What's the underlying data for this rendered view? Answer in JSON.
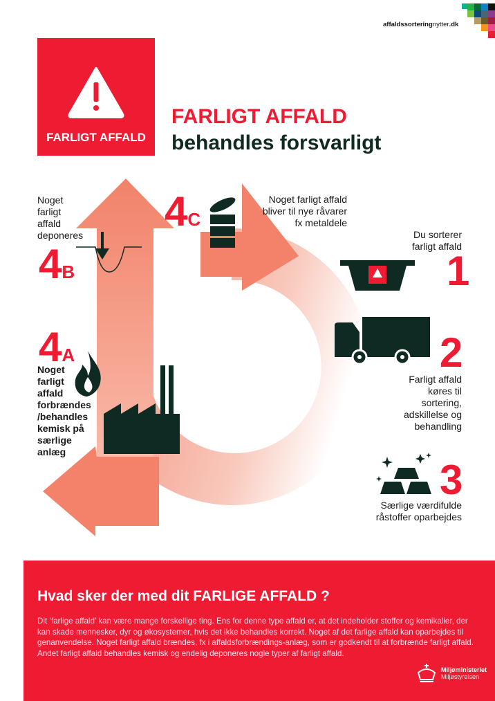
{
  "header": {
    "site_bold": "affaldssortering",
    "site_light": "nytter",
    "site_tld": ".dk",
    "mosaic_colors": [
      "#0bb38f",
      "#22b24c",
      "#0a6b3a",
      "#0a84c6",
      "#111111",
      "#7dc142",
      "#0a4a7a",
      "#4a6670",
      "#8e3a8c",
      "#b89a66",
      "#6b5a2a",
      "#a01e44",
      "#f7941d",
      "#ef4b8b",
      "#ee1c33"
    ]
  },
  "badge": {
    "label": "FARLIGT AFFALD",
    "icon": "warning-triangle-icon"
  },
  "title": {
    "line1": "FARLIGT AFFALD",
    "line2": "behandles forsvarligt"
  },
  "steps": {
    "s4b": {
      "num": "4",
      "letter": "B",
      "text": [
        "Noget",
        "farligt",
        "affald",
        "deponeres"
      ]
    },
    "s4c": {
      "num": "4",
      "letter": "C",
      "text": [
        "Noget farligt affald",
        "bliver til nye råvarer",
        "fx metaldele"
      ]
    },
    "s1": {
      "num": "1",
      "text": [
        "Du sorterer",
        "farligt affald"
      ]
    },
    "s2": {
      "num": "2",
      "text": [
        "Farligt affald",
        "køres til",
        "sortering,",
        "adskillelse og",
        "behandling"
      ]
    },
    "s3": {
      "num": "3",
      "text": [
        "Særlige værdifulde",
        "råstoffer oparbejdes"
      ]
    },
    "s4a": {
      "num": "4",
      "letter": "A",
      "text": [
        "Noget",
        "farligt",
        "affald",
        "forbrændes",
        "/behandles",
        "kemisk på",
        "særlige",
        "anlæg"
      ]
    }
  },
  "info": {
    "heading_pre": "Hvad sker der med dit ",
    "heading_bold": "FARLIGE AFFALD ?",
    "body": "Dit ‘farlige affald’ kan være mange forskellige ting. Ens for denne type affald er, at det indeholder stoffer og kemikalier, der kan skade mennesker, dyr og økosystemer, hvis det ikke behandles korrekt. Noget af det farlige affald kan oparbejdes til genanvendelse. Noget farligt affald brændes, fx i affaldsforbrændings-anlæg, som er godkendt til at forbrænde farligt affald. Andet farligt affald behandles kemisk og endelig deponeres nogle typer af farligt affald.",
    "ministry": "Miljøministeriet",
    "agency": "Miljøstyrelsen"
  },
  "colors": {
    "red": "#ee1c33",
    "dark": "#0f2a22",
    "salmon": "#f2826a"
  }
}
